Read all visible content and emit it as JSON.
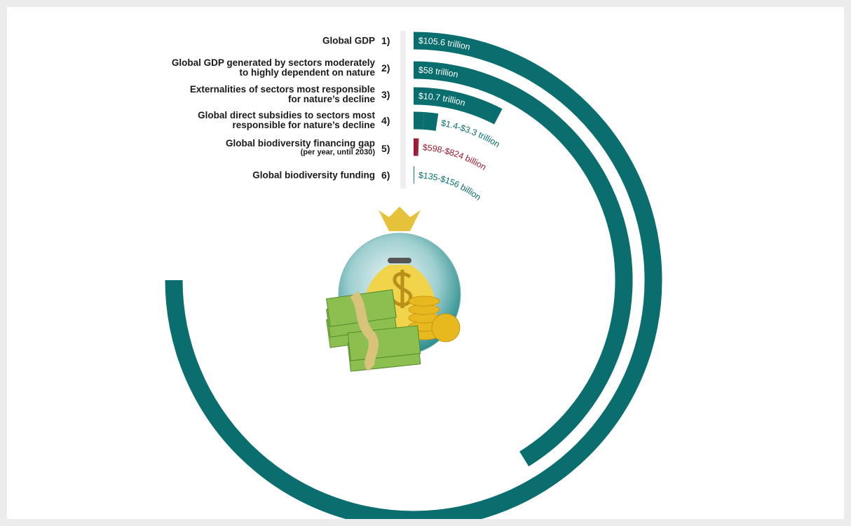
{
  "chart_data": {
    "type": "radial-bar",
    "categories": [
      [
        "Global GDP"
      ],
      [
        "Global GDP generated by sectors moderately",
        "to highly dependent on nature"
      ],
      [
        "Externalities of sectors most responsible",
        "for nature’s decline"
      ],
      [
        "Global direct subsidies to sectors most",
        "responsible for nature’s decline"
      ],
      [
        "Global biodiversity financing gap"
      ],
      [
        "Global biodiversity funding"
      ]
    ],
    "category_notes": {
      "4": "(per year, until 2030)"
    },
    "numbers": [
      "1)",
      "2)",
      "3)",
      "4)",
      "5)",
      "6)"
    ],
    "values": [
      105.6,
      58,
      10.7,
      [
        1.4,
        3.3
      ],
      [
        0.598,
        0.824
      ],
      [
        0.135,
        0.156
      ]
    ],
    "value_labels": [
      "$105.6 trillion",
      "$58 trillion",
      "$10.7 trillion",
      "$1.4-$3.3 trillion",
      "$598-$824 billion",
      "$135-$156 billion"
    ],
    "colors": [
      "#0b6e6e",
      "#0b6e6e",
      "#0b6e6e",
      "#0b6e6e",
      "#9b1b30",
      "#0b6e6e"
    ]
  }
}
